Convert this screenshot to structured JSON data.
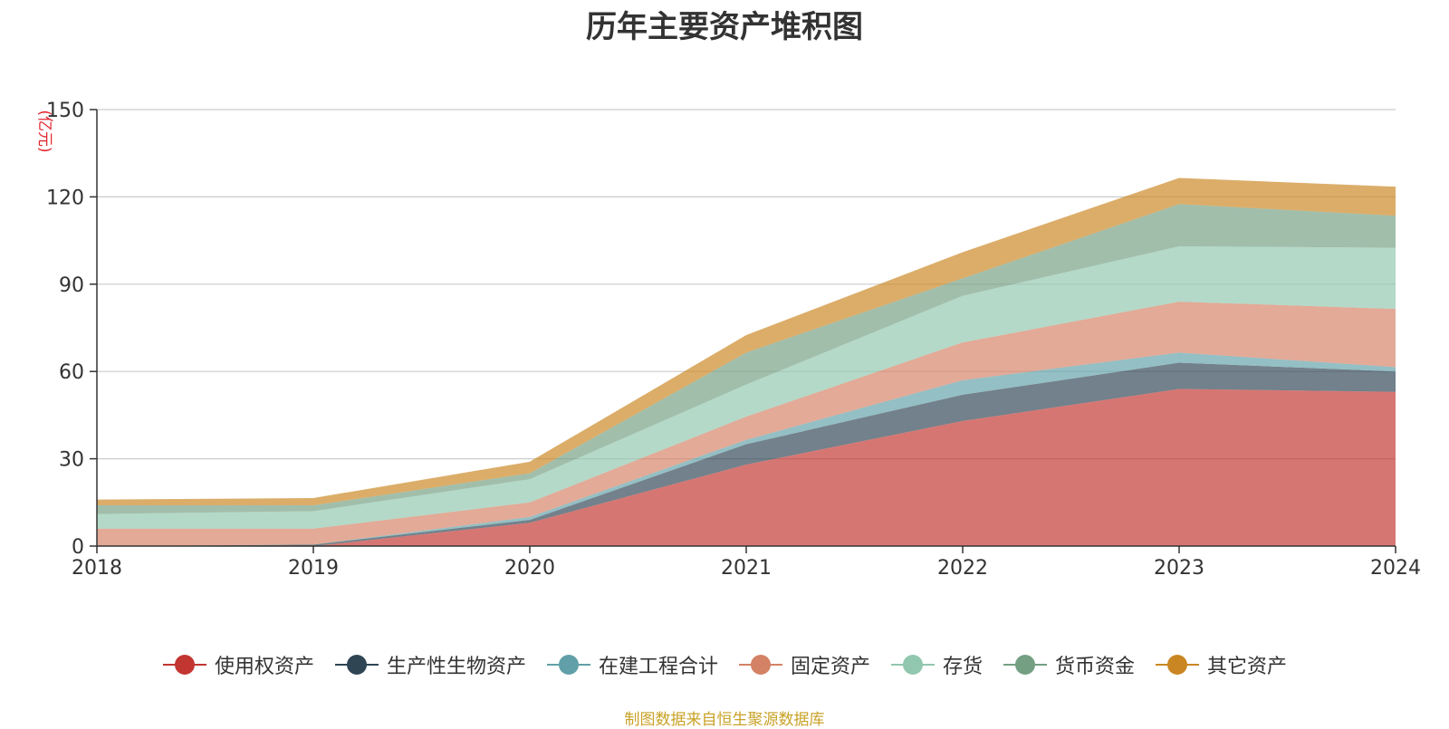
{
  "chart_data": {
    "type": "area",
    "stacked": true,
    "title": "历年主要资产堆积图",
    "ylabel": "(亿元)",
    "xlabel": "",
    "ylim": [
      0,
      150
    ],
    "yticks": [
      0,
      30,
      60,
      90,
      120,
      150
    ],
    "grid": true,
    "legend_position": "bottom",
    "categories": [
      "2018",
      "2019",
      "2020",
      "2021",
      "2022",
      "2023",
      "2024"
    ],
    "series": [
      {
        "name": "使用权资产",
        "color": "#c23531",
        "values": [
          0,
          0,
          8,
          28,
          43,
          54,
          53
        ]
      },
      {
        "name": "生产性生物资产",
        "color": "#2f4554",
        "values": [
          0,
          0.5,
          1,
          7,
          9,
          9,
          7
        ]
      },
      {
        "name": "在建工程合计",
        "color": "#61a0a8",
        "values": [
          0,
          0,
          1,
          1.5,
          5,
          3.5,
          1.5
        ]
      },
      {
        "name": "固定资产",
        "color": "#d48265",
        "values": [
          6,
          5.5,
          5,
          8,
          13,
          17.5,
          20
        ]
      },
      {
        "name": "存货",
        "color": "#91c7ae",
        "values": [
          5,
          6,
          8,
          11,
          16,
          19,
          21
        ]
      },
      {
        "name": "货币资金",
        "color": "#749f83",
        "values": [
          3,
          2,
          2,
          11,
          6,
          14.5,
          11
        ]
      },
      {
        "name": "其它资产",
        "color": "#ca8622",
        "values": [
          2,
          2.5,
          4,
          6,
          9,
          9,
          10
        ]
      }
    ]
  },
  "source_note": "制图数据来自恒生聚源数据库"
}
